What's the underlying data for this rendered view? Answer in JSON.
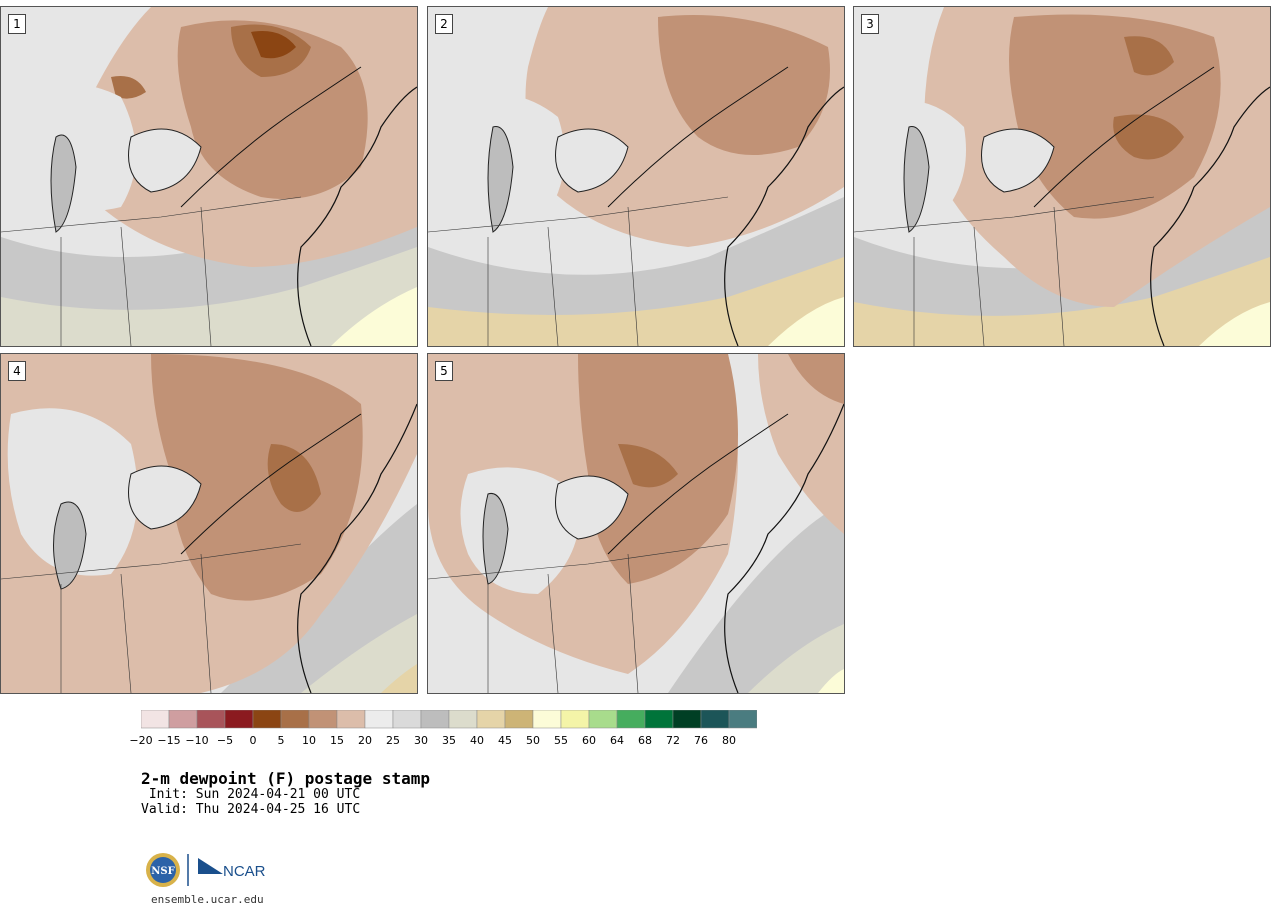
{
  "panels": [
    {
      "label": "1"
    },
    {
      "label": "2"
    },
    {
      "label": "3"
    },
    {
      "label": "4"
    },
    {
      "label": "5"
    }
  ],
  "colorbar": {
    "ticks": [
      "−20",
      "−15",
      "−10",
      "−5",
      "0",
      "5",
      "10",
      "15",
      "20",
      "25",
      "30",
      "35",
      "40",
      "45",
      "50",
      "55",
      "60",
      "64",
      "68",
      "72",
      "76",
      "80"
    ],
    "colors": [
      "#f2e4e4",
      "#cf9ea0",
      "#a8545a",
      "#8b1a1f",
      "#8b4513",
      "#a87048",
      "#c19276",
      "#dcbdaa",
      "#ececec",
      "#dadada",
      "#bdbdbd",
      "#dcdccc",
      "#e5d4a8",
      "#cdb476",
      "#fcfcd8",
      "#f4f4a8",
      "#a8dc8c",
      "#46ad5e",
      "#00743a",
      "#003f24",
      "#1c5558",
      "#4a7c80"
    ]
  },
  "title": "2-m dewpoint (F) postage stamp",
  "init": " Init: Sun 2024-04-21 00 UTC",
  "valid": "Valid: Thu 2024-04-25 16 UTC",
  "logo": {
    "nsf_text": "NSF",
    "ncar_text": "NCAR"
  },
  "site": "ensemble.ucar.edu"
}
